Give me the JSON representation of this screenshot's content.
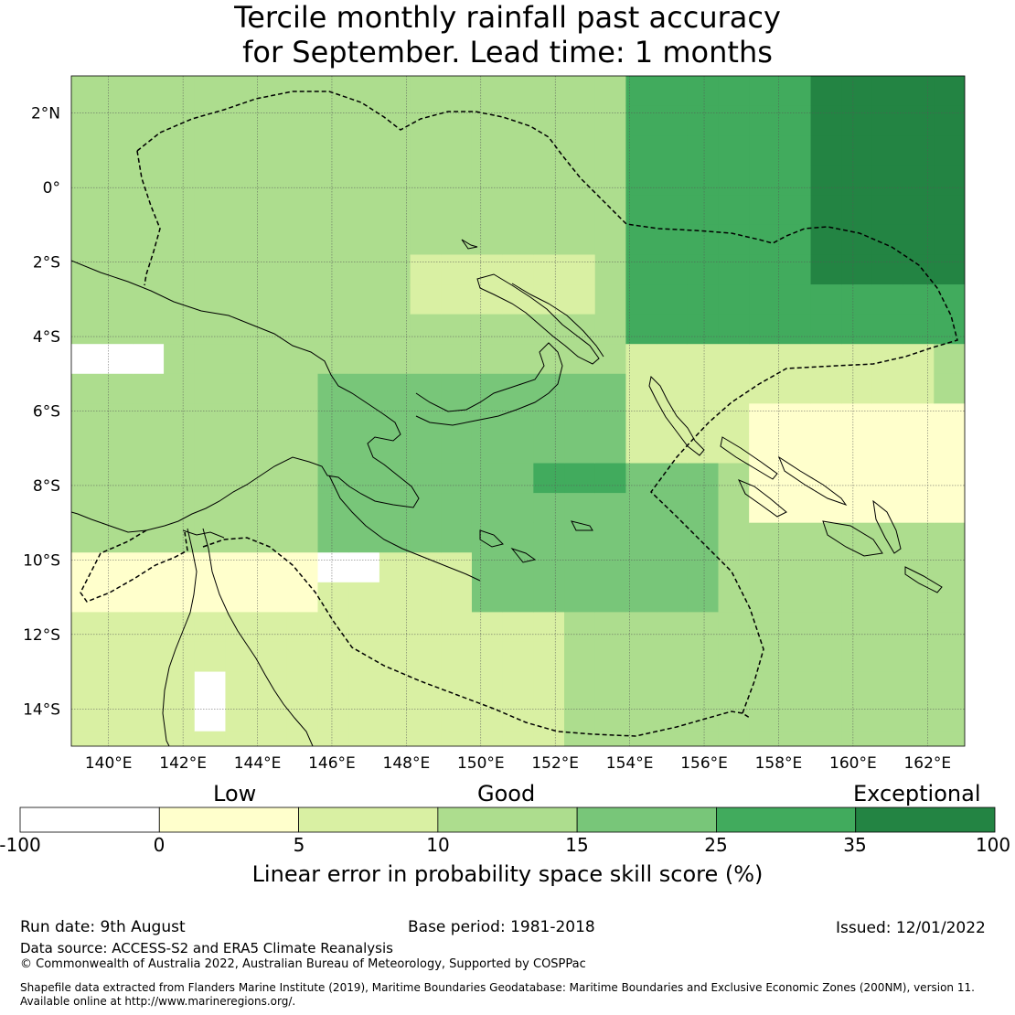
{
  "title": {
    "line1": "Tercile monthly rainfall past accuracy",
    "line2": "for September. Lead time: 1 months"
  },
  "map": {
    "lon_range": [
      139,
      163
    ],
    "lat_range": [
      -15,
      3
    ],
    "lon_ticks": [
      "140°E",
      "142°E",
      "144°E",
      "146°E",
      "148°E",
      "150°E",
      "152°E",
      "154°E",
      "156°E",
      "158°E",
      "160°E",
      "162°E"
    ],
    "lat_ticks": [
      "2°N",
      "0°",
      "2°S",
      "4°S",
      "6°S",
      "8°S",
      "10°S",
      "12°S",
      "14°S"
    ],
    "colors": [
      "#ffffff",
      "#ffffcc",
      "#d9f0a3",
      "#addd8e",
      "#78c679",
      "#41ab5d",
      "#238443"
    ]
  },
  "colorbar": {
    "category_labels": {
      "low": "Low",
      "good": "Good",
      "exceptional": "Exceptional"
    },
    "tick_labels": [
      "-100",
      "0",
      "5",
      "10",
      "15",
      "25",
      "35",
      "100"
    ],
    "title": "Linear error in probability space skill score (%)"
  },
  "footer": {
    "run_date": "Run date: 9th August",
    "base_period": "Base period: 1981-2018",
    "issued": "Issued: 12/01/2022",
    "data_source": "Data source: ACCESS-S2 and ERA5 Climate Reanalysis",
    "copyright": "© Commonwealth of Australia 2022, Australian Bureau of Meteorology, Supported by COSPPac",
    "shapefile_line1": "Shapefile data extracted from Flanders Marine Institute (2019), Maritime Boundaries Geodatabase: Maritime Boundaries and Exclusive Economic Zones (200NM), version 11.",
    "shapefile_line2": "Available online at http://www.marineregions.org/."
  }
}
